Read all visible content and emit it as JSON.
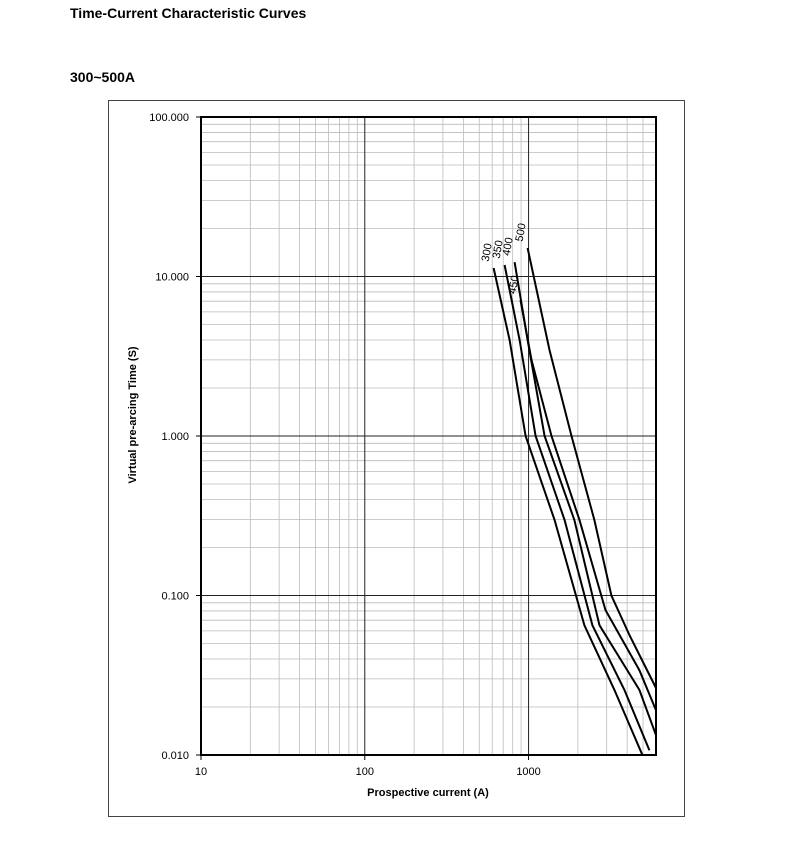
{
  "chart_data": {
    "type": "line",
    "title": "Time-Current Characteristic Curves",
    "subtitle": "300~500A",
    "xlabel": "Prospective current (A)",
    "ylabel": "Virtual pre-arcing Time (S)",
    "xlog": true,
    "ylog": true,
    "grid": true,
    "minor_grid": true,
    "xlim": [
      10,
      6000
    ],
    "xticks": [
      10,
      100,
      1000
    ],
    "ylim": [
      0.01,
      100
    ],
    "yticks": [
      {
        "value": 0.01,
        "label": "0.010"
      },
      {
        "value": 0.1,
        "label": "0.100"
      },
      {
        "value": 1,
        "label": "1.000"
      },
      {
        "value": 10,
        "label": "10.000"
      },
      {
        "value": 100,
        "label": "100.000"
      }
    ],
    "series": [
      {
        "name": "300",
        "color": "#000000",
        "x": [
          612,
          766,
          959,
          1442,
          2193,
          3342,
          4955
        ],
        "values": [
          11.3,
          4.0,
          1.0,
          0.297,
          0.065,
          0.0256,
          0.01
        ]
      },
      {
        "name": "350",
        "color": "#000000",
        "x": [
          714,
          882,
          1104,
          1660,
          2455,
          3846,
          5470
        ],
        "values": [
          11.8,
          4.0,
          1.0,
          0.297,
          0.065,
          0.0256,
          0.0107
        ]
      },
      {
        "name": "400",
        "color": "#000000",
        "x": [
          822,
          986,
          1253,
          1906,
          2710,
          4753,
          6000
        ],
        "values": [
          12.3,
          4.0,
          1.0,
          0.297,
          0.065,
          0.0256,
          0.0133
        ]
      },
      {
        "name": "450",
        "color": "#000000",
        "x": [
          893,
          1042,
          1381,
          2047,
          2950,
          4753,
          6000
        ],
        "values": [
          7.1,
          3.0,
          1.0,
          0.297,
          0.081,
          0.034,
          0.0191
        ]
      },
      {
        "name": "500",
        "color": "#000000",
        "x": [
          986,
          1343,
          1828,
          2523,
          3206,
          4130,
          6000
        ],
        "values": [
          15.1,
          3.46,
          1.0,
          0.297,
          0.1,
          0.0565,
          0.0263
        ]
      }
    ]
  }
}
